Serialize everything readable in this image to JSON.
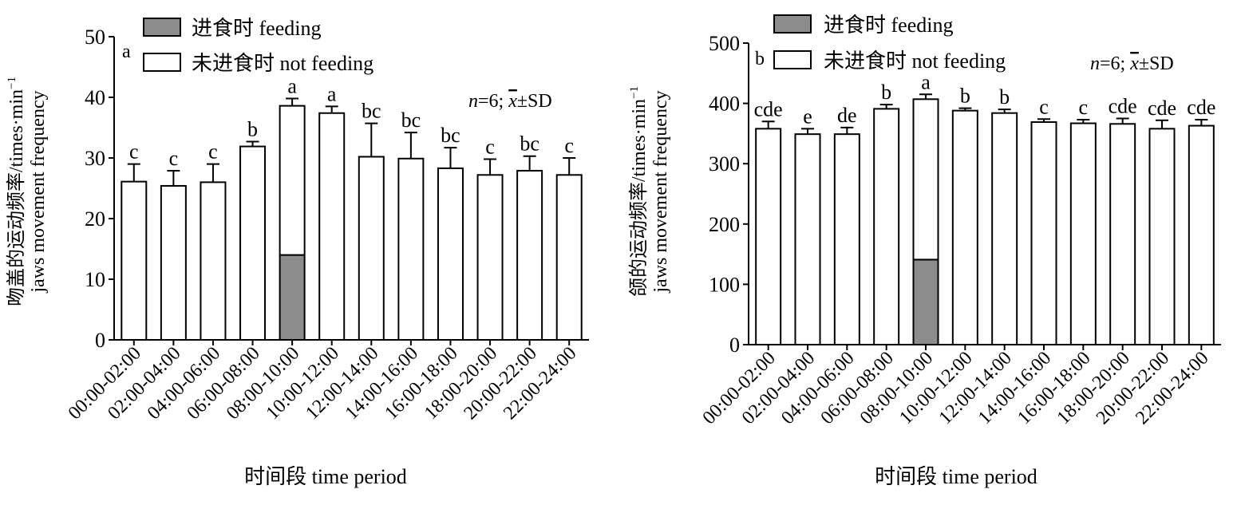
{
  "chart_data": [
    {
      "type": "bar",
      "panel_label": "a",
      "stacked": true,
      "categories": [
        "00:00-02:00",
        "02:00-04:00",
        "04:00-06:00",
        "06:00-08:00",
        "08:00-10:00",
        "10:00-12:00",
        "12:00-14:00",
        "14:00-16:00",
        "16:00-18:00",
        "18:00-20:00",
        "20:00-22:00",
        "22:00-24:00"
      ],
      "series": [
        {
          "name": "进食时 feeding",
          "color": "#8c8c8c",
          "values": [
            0,
            0,
            0,
            0,
            14,
            0,
            0,
            0,
            0,
            0,
            0,
            0
          ]
        },
        {
          "name": "未进食时 not feeding",
          "color": "#ffffff",
          "values": [
            26.1,
            25.4,
            26,
            31.9,
            24.6,
            37.4,
            30.2,
            29.9,
            28.3,
            27.2,
            27.9,
            27.2
          ]
        }
      ],
      "totals": [
        26.1,
        25.4,
        26,
        31.9,
        38.6,
        37.4,
        30.2,
        29.9,
        28.3,
        27.2,
        27.9,
        27.2
      ],
      "errors": [
        2.9,
        2.5,
        3.0,
        0.8,
        1.2,
        1.1,
        5.5,
        4.3,
        3.4,
        2.6,
        2.4,
        2.8
      ],
      "significance_letters": [
        "c",
        "c",
        "c",
        "b",
        "a",
        "a",
        "bc",
        "bc",
        "bc",
        "c",
        "bc",
        "c"
      ],
      "ylim": [
        0,
        50
      ],
      "yticks": [
        0,
        10,
        20,
        30,
        40,
        50
      ],
      "ylabel_line1": "吻盖的运动频率/times·min",
      "ylabel_line2": "jaws movement frequency",
      "ylabel_sup": "−1",
      "xlabel": "时间段 time period",
      "stats_n": "n",
      "stats_text": "=6; ",
      "stats_x": "x",
      "stats_sd": "±SD"
    },
    {
      "type": "bar",
      "panel_label": "b",
      "stacked": true,
      "categories": [
        "00:00-02:00",
        "02:00-04:00",
        "04:00-06:00",
        "06:00-08:00",
        "08:00-10:00",
        "10:00-12:00",
        "12:00-14:00",
        "14:00-16:00",
        "16:00-18:00",
        "18:00-20:00",
        "20:00-22:00",
        "22:00-24:00"
      ],
      "series": [
        {
          "name": "进食时 feeding",
          "color": "#8c8c8c",
          "values": [
            0,
            0,
            0,
            0,
            141,
            0,
            0,
            0,
            0,
            0,
            0,
            0
          ]
        },
        {
          "name": "未进食时 not feeding",
          "color": "#ffffff",
          "values": [
            358,
            349,
            349,
            391,
            266,
            388,
            384,
            369,
            367,
            366,
            358,
            363
          ]
        }
      ],
      "totals": [
        358,
        349,
        349,
        391,
        407,
        388,
        384,
        369,
        367,
        366,
        358,
        363
      ],
      "errors": [
        12,
        9,
        11,
        7,
        8,
        4,
        6,
        5,
        6,
        9,
        14,
        10
      ],
      "significance_letters": [
        "cde",
        "e",
        "de",
        "b",
        "a",
        "b",
        "b",
        "c",
        "c",
        "cde",
        "cde",
        "cde"
      ],
      "ylim": [
        0,
        500
      ],
      "yticks": [
        0,
        100,
        200,
        300,
        400,
        500
      ],
      "ylabel_line1": "颌的运动频率/times·min",
      "ylabel_line2": "jaws movement frequency",
      "ylabel_sup": "−1",
      "xlabel": "时间段 time period",
      "stats_n": "n",
      "stats_text": "=6; ",
      "stats_x": "x",
      "stats_sd": "±SD"
    }
  ]
}
